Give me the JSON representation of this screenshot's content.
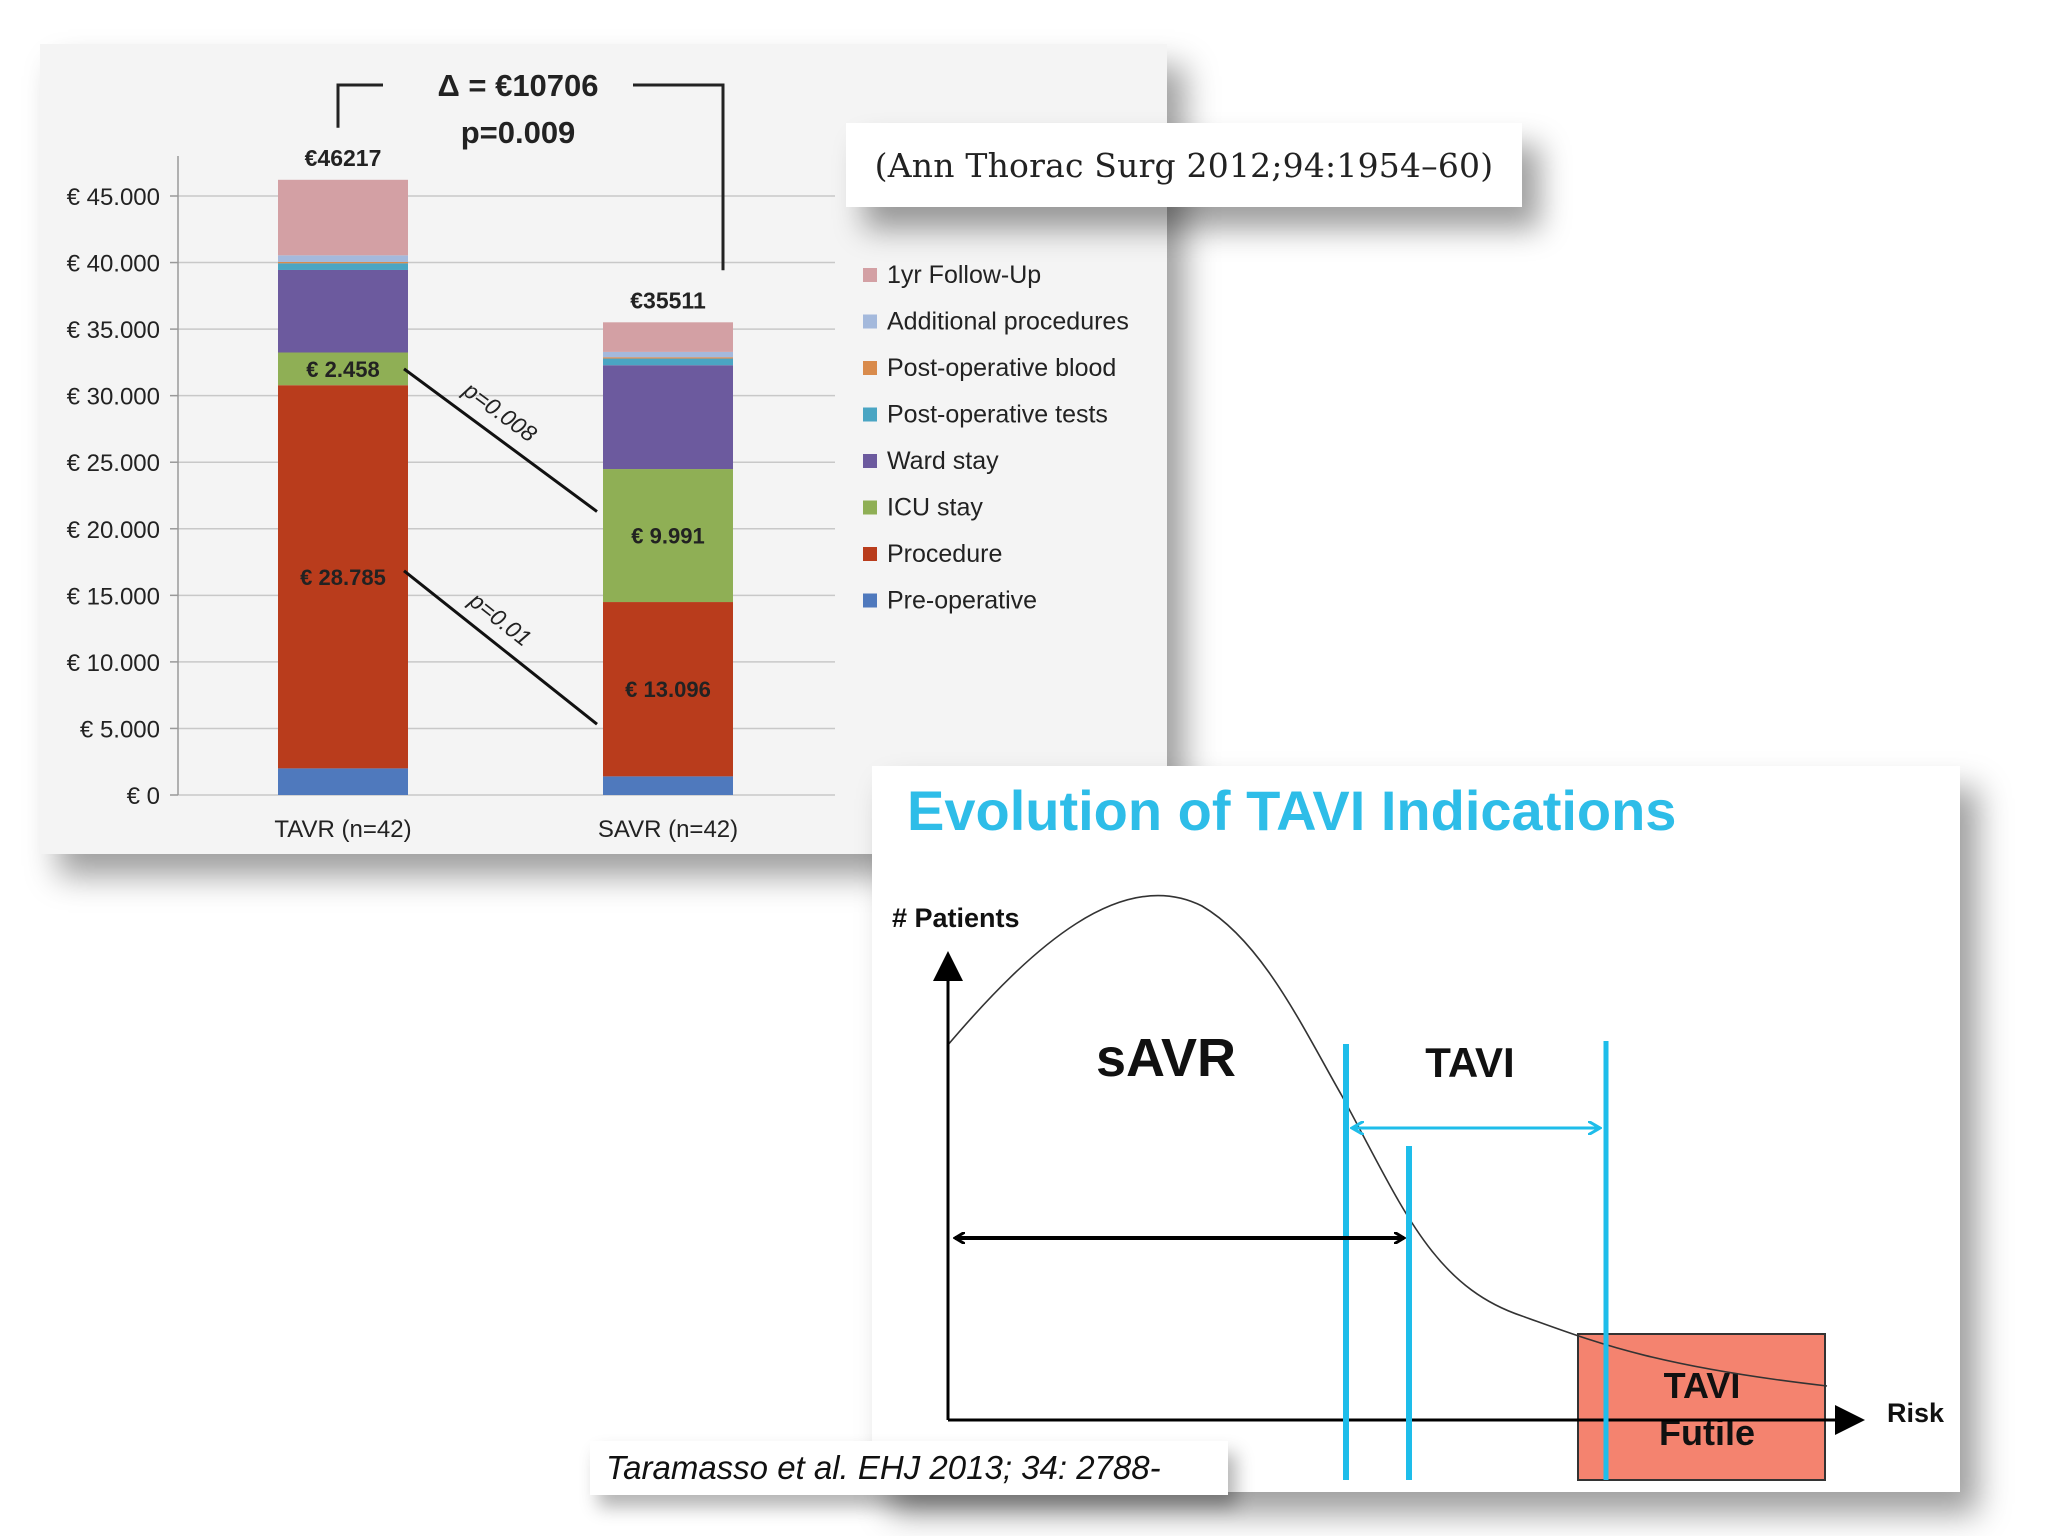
{
  "chart_data": [
    {
      "type": "bar",
      "stacked": true,
      "categories": [
        "TAVR (n=42)",
        "SAVR (n=42)"
      ],
      "totals": [
        "€46217",
        "€35511"
      ],
      "delta": {
        "line1": "Δ = €10706",
        "line2": "p=0.009"
      },
      "y_ticks": [
        "€ 45.000",
        "€ 40.000",
        "€ 35.000",
        "€ 30.000",
        "€ 25.000",
        "€ 20.000",
        "€ 15.000",
        "€ 10.000",
        "€ 5.000",
        "€ 0"
      ],
      "ylim": [
        0,
        47000
      ],
      "grid": true,
      "legend_position": "right",
      "series": [
        {
          "name": "Pre-operative",
          "color": "#4f79bd",
          "values": [
            2000,
            1400
          ]
        },
        {
          "name": "Procedure",
          "color": "#b93c1c",
          "values": [
            28785,
            13096
          ],
          "labels": [
            "€ 28.785",
            "€ 13.096"
          ]
        },
        {
          "name": "ICU stay",
          "color": "#8faf55",
          "values": [
            2458,
            9991
          ],
          "labels": [
            "€ 2.458",
            "€ 9.991"
          ]
        },
        {
          "name": "Ward stay",
          "color": "#6c5a9e",
          "values": [
            6200,
            7800
          ]
        },
        {
          "name": "Post-operative tests",
          "color": "#4aa5c3",
          "values": [
            500,
            500
          ]
        },
        {
          "name": "Post-operative blood",
          "color": "#d98b4c",
          "values": [
            100,
            100
          ]
        },
        {
          "name": "Additional procedures",
          "color": "#a4b9dc",
          "values": [
            500,
            400
          ]
        },
        {
          "name": "1yr Follow-Up",
          "color": "#d3a0a4",
          "values": [
            5674,
            2224
          ]
        }
      ],
      "legend_order": [
        "1yr Follow-Up",
        "Additional procedures",
        "Post-operative blood",
        "Post-operative tests",
        "Ward stay",
        "ICU stay",
        "Procedure",
        "Pre-operative"
      ],
      "comparisons": [
        {
          "series": "ICU stay",
          "p_label": "p=0.008"
        },
        {
          "series": "Procedure",
          "p_label": "p=0.01"
        }
      ]
    },
    {
      "type": "diagram",
      "title": "Evolution of TAVI Indications",
      "ylabel": "# Patients",
      "xlabel": "Risk",
      "regions": [
        "sAVR",
        "TAVI"
      ],
      "futile_box": {
        "line1": "TAVI",
        "line2": "Futile",
        "color": "#f4836f"
      },
      "accent_color": "#1ebdea"
    }
  ],
  "citations": {
    "ann_thorac": "(Ann Thorac Surg 2012;94:1954–60)",
    "taramasso": "Taramasso et al. EHJ 2013; 34: 2788-"
  }
}
